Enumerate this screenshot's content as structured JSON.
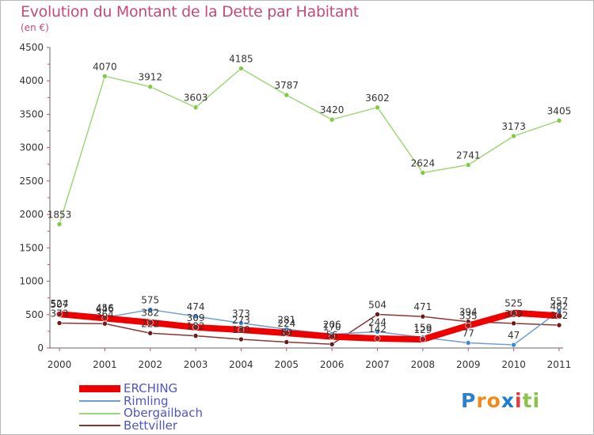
{
  "title": "Evolution du Montant de la Dette par Habitant",
  "unit": "(en €)",
  "logo": {
    "text": "Proxiti",
    "letters": [
      "P",
      "r",
      "o",
      "x",
      "i",
      "t",
      "i"
    ],
    "colors": [
      "#2f7fd0",
      "#f08a1c",
      "#f08a1c",
      "#1f7bd0",
      "#e23c3c",
      "#8bc34a",
      "#8bc34a"
    ]
  },
  "chart_data": {
    "type": "line",
    "x": [
      "2000",
      "2001",
      "2002",
      "2003",
      "2004",
      "2005",
      "2006",
      "2007",
      "2008",
      "2009",
      "2010",
      "2011"
    ],
    "ylim": [
      0,
      4500
    ],
    "yticks": [
      "0",
      "500",
      "1000",
      "1500",
      "2000",
      "2500",
      "3000",
      "3500",
      "4000",
      "4500"
    ],
    "grid": false,
    "legend_position": "bottom-left",
    "series": [
      {
        "name": "ERCHING",
        "color": "#ee0000",
        "width": 8,
        "marker": "#b01818",
        "values": [
          507,
          446,
          382,
          309,
          273,
          224,
          170,
          142,
          129,
          335,
          525,
          482
        ]
      },
      {
        "name": "Rimling",
        "color": "#6f9fd0",
        "width": 1.5,
        "marker": "#3a8ad8",
        "values": [
          524,
          456,
          575,
          474,
          373,
          281,
          206,
          244,
          159,
          77,
          47,
          557
        ]
      },
      {
        "name": "Obergailbach",
        "color": "#9fd67a",
        "width": 1.5,
        "marker": "#7fcc44",
        "values": [
          1853,
          4070,
          3912,
          3603,
          4185,
          3787,
          3420,
          3602,
          2624,
          2741,
          3173,
          3405
        ]
      },
      {
        "name": "Bettviller",
        "color": "#8b3535",
        "width": 1.5,
        "marker": "#6a1818",
        "values": [
          373,
          364,
          222,
          182,
          130,
          89,
          56,
          504,
          471,
          394,
          369,
          342
        ]
      }
    ]
  }
}
